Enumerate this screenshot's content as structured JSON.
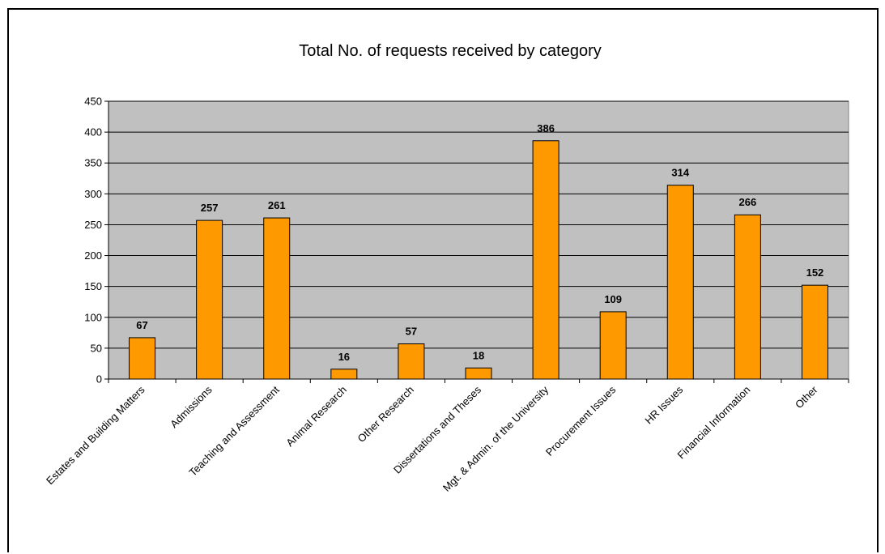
{
  "chart_data": {
    "type": "bar",
    "title": "Total No. of requests received by category",
    "categories": [
      "Estates and Building Matters",
      "Admissions",
      "Teaching and Assessment",
      "Animal Research",
      "Other Research",
      "Dissertations and Theses",
      "Mgt. & Admin. of the University",
      "Procurement Issues",
      "HR Issues",
      "Financial Information",
      "Other"
    ],
    "values": [
      67,
      257,
      261,
      16,
      57,
      18,
      386,
      109,
      314,
      266,
      152
    ],
    "ylim": [
      0,
      450
    ],
    "yticks": [
      "0",
      "50",
      "100",
      "150",
      "200",
      "250",
      "300",
      "350",
      "400",
      "450"
    ],
    "xlabel": "",
    "ylabel": "",
    "grid": "horizontal",
    "legend": "none",
    "colors": {
      "bar_fill": "#FF9900",
      "bar_stroke": "#000000",
      "plot_background": "#C0C0C0",
      "gridline": "#000000"
    }
  }
}
